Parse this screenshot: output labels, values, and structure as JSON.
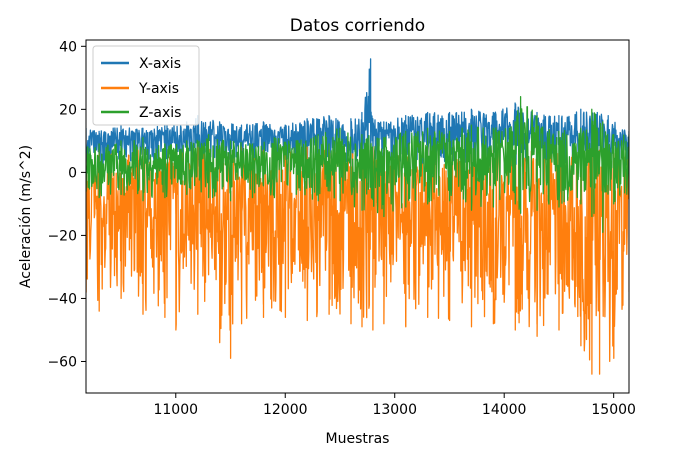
{
  "chart_data": {
    "type": "line",
    "title": "Datos corriendo",
    "xlabel": "Muestras",
    "ylabel": "Aceleración (m/s^2)",
    "xlim": [
      10180,
      15140
    ],
    "ylim": [
      -70,
      42
    ],
    "xticks": [
      11000,
      12000,
      13000,
      14000,
      15000
    ],
    "xtick_labels": [
      "11000",
      "12000",
      "13000",
      "14000",
      "15000"
    ],
    "yticks": [
      40,
      20,
      0,
      -20,
      -40,
      -60
    ],
    "ytick_labels": [
      "40",
      "20",
      "0",
      "−20",
      "−40",
      "−60"
    ],
    "grid": false,
    "legend_position": "top-left",
    "series": [
      {
        "name": "X-axis",
        "color": "#1f77b4",
        "x": [
          10180,
          10300,
          10500,
          10700,
          10900,
          11100,
          11200,
          11400,
          11600,
          11800,
          12000,
          12200,
          12400,
          12600,
          12700,
          12780,
          12800,
          12900,
          13100,
          13300,
          13500,
          13700,
          13900,
          14100,
          14150,
          14300,
          14500,
          14700,
          14850,
          14950,
          15140
        ],
        "low": [
          3,
          2,
          3,
          2,
          3,
          3,
          2,
          3,
          2,
          3,
          3,
          2,
          3,
          2,
          2,
          2,
          3,
          2,
          3,
          2,
          3,
          2,
          3,
          2,
          2,
          3,
          2,
          3,
          2,
          3,
          2
        ],
        "high": [
          14,
          13,
          15,
          14,
          15,
          16,
          18,
          16,
          15,
          16,
          15,
          17,
          18,
          17,
          19,
          36,
          17,
          16,
          18,
          19,
          19,
          20,
          19,
          22,
          21,
          19,
          18,
          20,
          19,
          18,
          13
        ]
      },
      {
        "name": "Y-axis",
        "color": "#ff7f0e",
        "x": [
          10180,
          10300,
          10500,
          10700,
          10900,
          11000,
          11200,
          11400,
          11500,
          11600,
          11800,
          12000,
          12200,
          12400,
          12600,
          12700,
          12800,
          12900,
          13100,
          13300,
          13500,
          13700,
          13900,
          14100,
          14300,
          14500,
          14700,
          14800,
          14870,
          15000,
          15140
        ],
        "low": [
          -38,
          -44,
          -40,
          -45,
          -46,
          -50,
          -45,
          -54,
          -59,
          -48,
          -46,
          -46,
          -47,
          -45,
          -48,
          -49,
          -50,
          -48,
          -49,
          -46,
          -47,
          -49,
          -48,
          -50,
          -52,
          -50,
          -55,
          -64,
          -64,
          -59,
          -38
        ],
        "high": [
          6,
          7,
          6,
          8,
          7,
          6,
          8,
          7,
          6,
          8,
          7,
          6,
          8,
          7,
          6,
          7,
          8,
          7,
          6,
          8,
          7,
          8,
          7,
          8,
          7,
          6,
          8,
          7,
          7,
          6,
          7
        ]
      },
      {
        "name": "Z-axis",
        "color": "#2ca02c",
        "x": [
          10180,
          10300,
          10500,
          10700,
          10900,
          11100,
          11300,
          11500,
          11700,
          11900,
          12100,
          12300,
          12500,
          12700,
          12900,
          13100,
          13300,
          13500,
          13700,
          13900,
          14100,
          14150,
          14300,
          14500,
          14700,
          14800,
          14900,
          15000,
          15140
        ],
        "low": [
          -6,
          -8,
          -7,
          -9,
          -8,
          -7,
          -8,
          -9,
          -8,
          -8,
          -7,
          -9,
          -9,
          -12,
          -14,
          -11,
          -10,
          -9,
          -12,
          -11,
          -10,
          -13,
          -12,
          -11,
          -10,
          -14,
          -19,
          -10,
          -8
        ],
        "high": [
          8,
          9,
          10,
          11,
          9,
          10,
          12,
          10,
          9,
          11,
          10,
          12,
          14,
          12,
          11,
          13,
          14,
          13,
          15,
          14,
          16,
          24,
          18,
          13,
          14,
          20,
          16,
          12,
          12
        ]
      }
    ]
  }
}
